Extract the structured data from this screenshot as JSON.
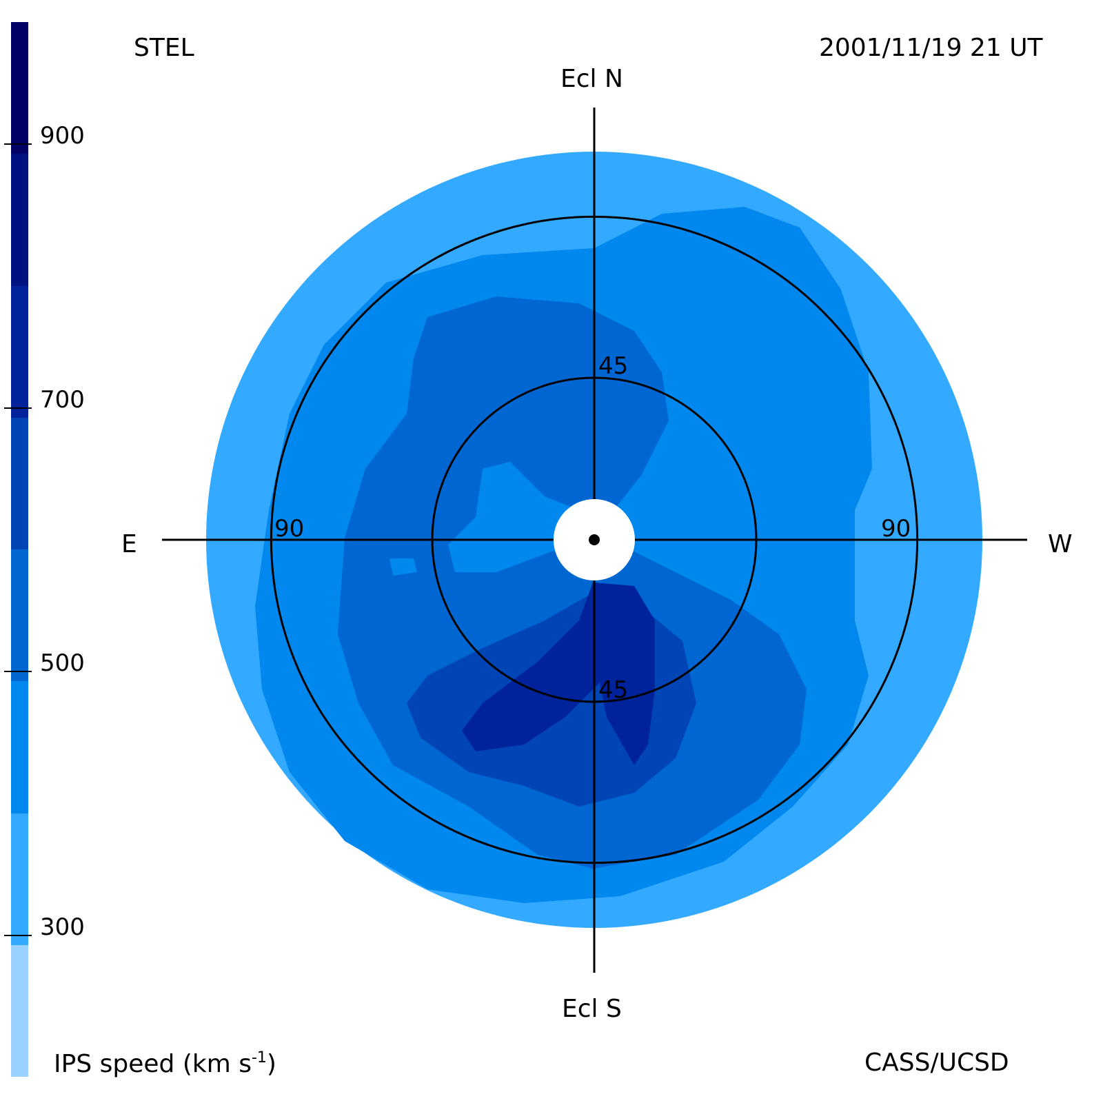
{
  "header": {
    "station": "STEL",
    "timestamp": "2001/11/19 21 UT"
  },
  "footer": {
    "colorbar_title_main": "IPS speed (km s",
    "colorbar_title_exp": "-1",
    "colorbar_title_close": ")",
    "credit": "CASS/UCSD"
  },
  "compass": {
    "north": "Ecl N",
    "south": "Ecl S",
    "east": "E",
    "west": "W"
  },
  "colors": {
    "speed_bins": [
      "#99d2ff",
      "#33aaff",
      "#0088ee",
      "#0066d2",
      "#0044b6",
      "#00229b",
      "#001180",
      "#000066",
      "#00004c",
      "#000031"
    ]
  },
  "chart_data": {
    "type": "heatmap",
    "projection": "polar sky map centred on Sun (elongation)",
    "colorbar": {
      "title": "IPS speed (km s-1)",
      "range": [
        200,
        1000
      ],
      "bins": [
        [
          200,
          300
        ],
        [
          300,
          400
        ],
        [
          400,
          500
        ],
        [
          500,
          600
        ],
        [
          600,
          700
        ],
        [
          700,
          800
        ],
        [
          800,
          900
        ],
        [
          900,
          1000
        ]
      ],
      "ticks": [
        300,
        500,
        700,
        900
      ],
      "tick_labels": [
        "300",
        "500",
        "700",
        "900"
      ]
    },
    "elongation_rings": [
      45,
      90
    ],
    "ring_labels": [
      "45",
      "45",
      "90",
      "90"
    ],
    "axes": [
      "Ecl N",
      "Ecl S",
      "E",
      "W"
    ],
    "max_elongation": 120,
    "occulted_core": true,
    "regions": [
      {
        "speed_range": [
          300,
          400
        ],
        "description": "outer band, most of sky beyond 90 elongation"
      },
      {
        "speed_range": [
          400,
          500
        ],
        "description": "west and north sectors inside 90 elongation"
      },
      {
        "speed_range": [
          500,
          600
        ],
        "description": "broad eastern and southern structure"
      },
      {
        "speed_range": [
          600,
          700
        ],
        "description": "southern lobe"
      },
      {
        "speed_range": [
          700,
          800
        ],
        "description": "fast stream south of Sun near 45 elongation"
      }
    ]
  }
}
